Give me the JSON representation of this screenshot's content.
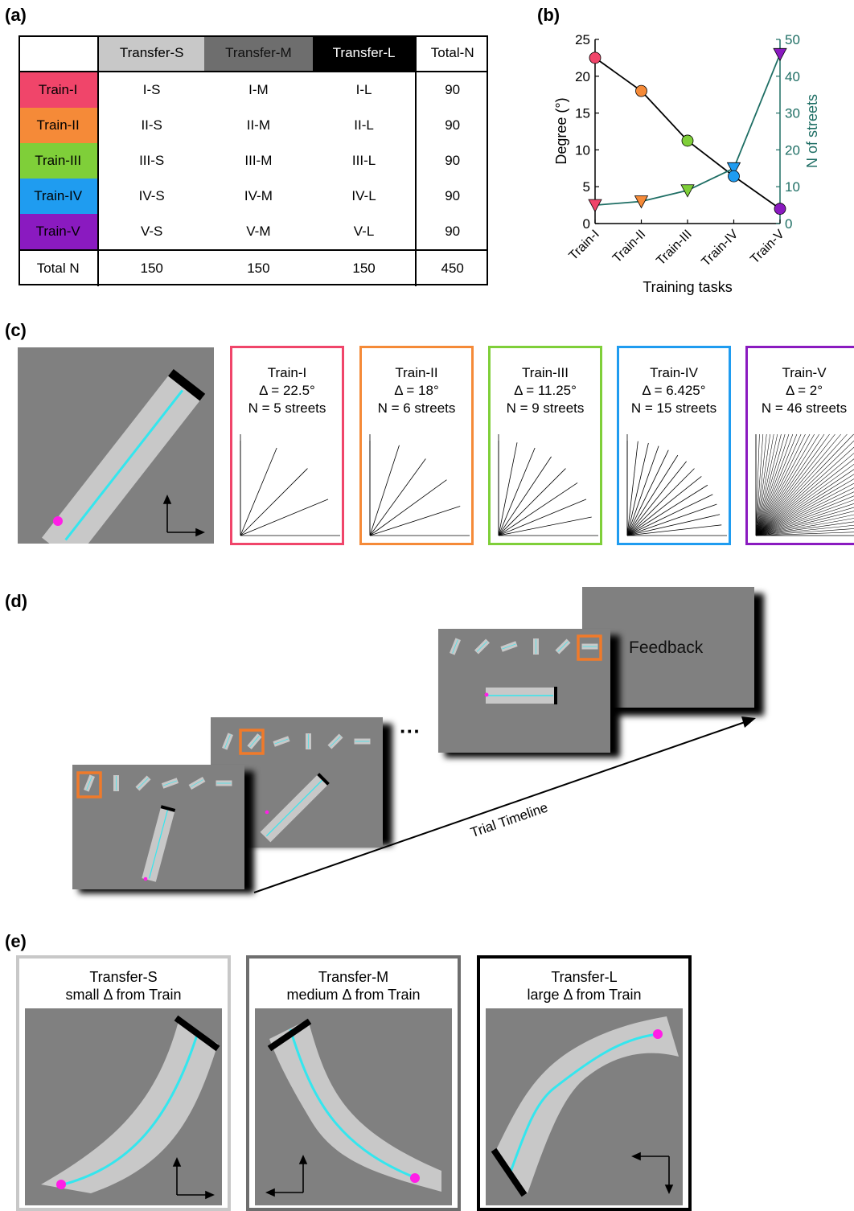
{
  "labels": {
    "a": "(a)",
    "b": "(b)",
    "c": "(c)",
    "d": "(d)",
    "e": "(e)"
  },
  "table": {
    "columns": [
      "Transfer-S",
      "Transfer-M",
      "Transfer-L",
      "Total-N"
    ],
    "column_colors": [
      "#c8c8c8",
      "#6e6e6e",
      "#000000",
      "#ffffff"
    ],
    "rows": [
      {
        "label": "Train-I",
        "color": "#f0456a",
        "cells": [
          "I-S",
          "I-M",
          "I-L",
          "90"
        ]
      },
      {
        "label": "Train-II",
        "color": "#f58a38",
        "cells": [
          "II-S",
          "II-M",
          "II-L",
          "90"
        ]
      },
      {
        "label": "Train-III",
        "color": "#7fcf39",
        "cells": [
          "III-S",
          "III-M",
          "III-L",
          "90"
        ]
      },
      {
        "label": "Train-IV",
        "color": "#1f9cf0",
        "cells": [
          "IV-S",
          "IV-M",
          "IV-L",
          "90"
        ]
      },
      {
        "label": "Train-V",
        "color": "#8a1ac0",
        "cells": [
          "V-S",
          "V-M",
          "V-L",
          "90"
        ]
      }
    ],
    "total": {
      "label": "Total N",
      "cells": [
        "150",
        "150",
        "150",
        "450"
      ]
    }
  },
  "chart_data": {
    "type": "line",
    "categories": [
      "Train-I",
      "Train-II",
      "Train-III",
      "Train-IV",
      "Train-V"
    ],
    "xlabel": "Training tasks",
    "ylabel": "Degree (°)",
    "ylabel_right": "N of streets",
    "ylim": [
      0,
      25
    ],
    "ylim_right": [
      0,
      50
    ],
    "yticks": [
      "0",
      "5",
      "10",
      "15",
      "20",
      "25"
    ],
    "yticks_right": [
      "0",
      "10",
      "20",
      "30",
      "40",
      "50"
    ],
    "series": [
      {
        "axis": "left",
        "values": [
          22.5,
          18,
          11.25,
          6.425,
          2
        ],
        "color": "#000000",
        "marker": "circle"
      },
      {
        "axis": "right",
        "values": [
          5,
          6,
          9,
          15,
          46
        ],
        "color": "#1e6e64",
        "marker": "triangle-down"
      }
    ],
    "point_colors": [
      "#f0456a",
      "#f58a38",
      "#7fcf39",
      "#1f9cf0",
      "#8a1ac0"
    ]
  },
  "tasks": [
    {
      "title": "Train-I",
      "delta": "Δ = 22.5°",
      "n": "N = 5 streets",
      "color": "#f0456a",
      "deg": 22.5,
      "count": 5
    },
    {
      "title": "Train-II",
      "delta": "Δ = 18°",
      "n": "N = 6 streets",
      "color": "#f58a38",
      "deg": 18,
      "count": 6
    },
    {
      "title": "Train-III",
      "delta": "Δ = 11.25°",
      "n": "N = 9 streets",
      "color": "#7fcf39",
      "deg": 11.25,
      "count": 9
    },
    {
      "title": "Train-IV",
      "delta": "Δ = 6.425°",
      "n": "N = 15 streets",
      "color": "#1f9cf0",
      "deg": 6.425,
      "count": 15
    },
    {
      "title": "Train-V",
      "delta": "Δ = 2°",
      "n": "N = 46 streets",
      "color": "#8a1ac0",
      "deg": 2,
      "count": 46
    }
  ],
  "timeline": {
    "feedback": "Feedback",
    "arrow_label": "Trial Timeline",
    "ellipsis": "···",
    "highlight_color": "#f07a2a"
  },
  "transfer": [
    {
      "title": "Transfer-S",
      "sub": "small Δ from Train",
      "border": "#c8c8c8"
    },
    {
      "title": "Transfer-M",
      "sub": "medium Δ from Train",
      "border": "#6e6e6e"
    },
    {
      "title": "Transfer-L",
      "sub": "large Δ from Train",
      "border": "#000000"
    }
  ]
}
